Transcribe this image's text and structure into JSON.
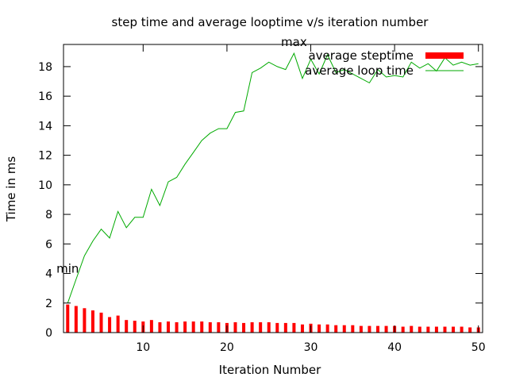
{
  "chart_data": {
    "type": "bar+line",
    "title": "step time and average looptime v/s iteration number",
    "xlabel": "Iteration Number",
    "ylabel": "Time in ms",
    "xlim": [
      0.5,
      50.5
    ],
    "ylim": [
      0,
      19.5
    ],
    "x_ticks": [
      10,
      20,
      30,
      40,
      50
    ],
    "y_ticks": [
      0,
      2,
      4,
      6,
      8,
      10,
      12,
      14,
      16,
      18
    ],
    "grid": false,
    "legend_position": "top-right",
    "x": [
      1,
      2,
      3,
      4,
      5,
      6,
      7,
      8,
      9,
      10,
      11,
      12,
      13,
      14,
      15,
      16,
      17,
      18,
      19,
      20,
      21,
      22,
      23,
      24,
      25,
      26,
      27,
      28,
      29,
      30,
      31,
      32,
      33,
      34,
      35,
      36,
      37,
      38,
      39,
      40,
      41,
      42,
      43,
      44,
      45,
      46,
      47,
      48,
      49,
      50
    ],
    "series": [
      {
        "name": "average steptime",
        "kind": "bar",
        "color": "#ff0000",
        "values": [
          1.9,
          1.8,
          1.65,
          1.5,
          1.35,
          1.05,
          1.15,
          0.85,
          0.8,
          0.75,
          0.85,
          0.7,
          0.75,
          0.7,
          0.75,
          0.75,
          0.75,
          0.7,
          0.7,
          0.65,
          0.7,
          0.65,
          0.7,
          0.7,
          0.7,
          0.65,
          0.65,
          0.65,
          0.55,
          0.6,
          0.55,
          0.55,
          0.5,
          0.5,
          0.5,
          0.45,
          0.45,
          0.45,
          0.45,
          0.45,
          0.4,
          0.45,
          0.4,
          0.4,
          0.4,
          0.4,
          0.4,
          0.4,
          0.35,
          0.35
        ]
      },
      {
        "name": "average loop time",
        "kind": "line",
        "color": "#00aa00",
        "values": [
          2.0,
          3.6,
          5.2,
          6.2,
          7.0,
          6.4,
          8.2,
          7.1,
          7.8,
          7.8,
          9.7,
          8.6,
          10.2,
          10.5,
          11.4,
          12.2,
          13.0,
          13.5,
          13.8,
          13.8,
          14.9,
          15.0,
          17.6,
          17.9,
          18.3,
          18.0,
          17.8,
          18.9,
          17.2,
          18.5,
          17.5,
          18.8,
          17.6,
          17.8,
          17.5,
          17.2,
          16.9,
          17.8,
          17.3,
          17.4,
          17.3,
          18.3,
          17.9,
          18.2,
          17.7,
          18.6,
          18.1,
          18.3,
          18.1,
          18.2
        ]
      }
    ],
    "annotations": [
      {
        "text": "min",
        "x": 1,
        "y": 4.05
      },
      {
        "text": "max",
        "x": 28,
        "y": 19.4
      }
    ]
  }
}
